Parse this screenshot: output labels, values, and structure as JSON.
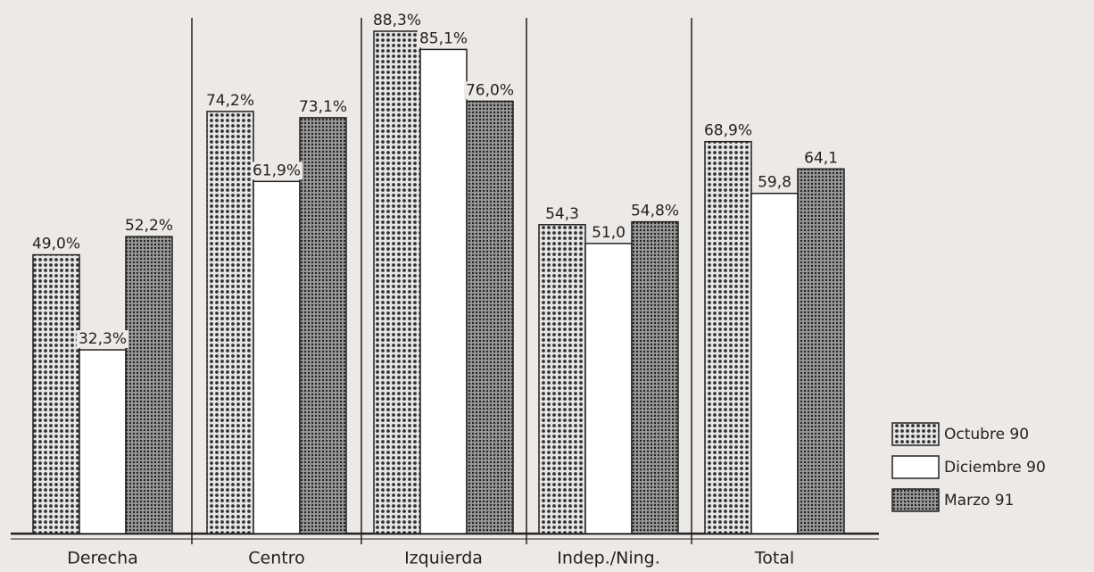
{
  "chart_data": {
    "type": "bar",
    "categories": [
      "Derecha",
      "Centro",
      "Izquierda",
      "Indep./Ning.",
      "Total"
    ],
    "series": [
      {
        "name": "Octubre 90",
        "color": "#d8d8d8",
        "values": [
          49.0,
          74.2,
          88.3,
          54.3,
          68.9
        ],
        "value_labels": [
          "49,0%",
          "74,2%",
          "88,3%",
          "54,3",
          "68,9%"
        ]
      },
      {
        "name": "Diciembre 90",
        "color": "#ffffff",
        "values": [
          32.3,
          61.9,
          85.1,
          51.0,
          59.8
        ],
        "value_labels": [
          "32,3%",
          "61,9%",
          "85,1%",
          "51,0",
          "59,8"
        ]
      },
      {
        "name": "Marzo 91",
        "color": "#888888",
        "values": [
          52.2,
          73.1,
          76.0,
          54.8,
          64.1
        ],
        "value_labels": [
          "52,2%",
          "73,1%",
          "76,0%",
          "54,8%",
          "64,1"
        ]
      }
    ],
    "legend": "right"
  }
}
